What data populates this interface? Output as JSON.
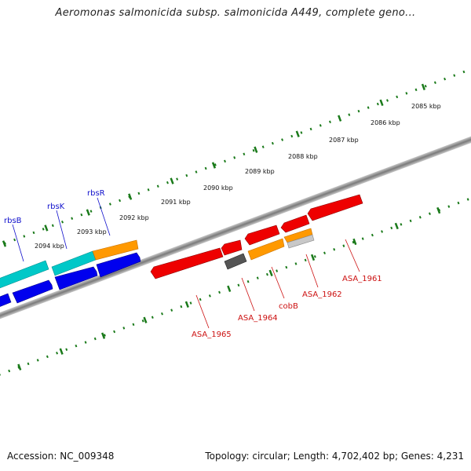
{
  "header": {
    "title": "Aeromonas salmonicida subsp. salmonicida A449, complete geno..."
  },
  "footer": {
    "accession": "Accession: NC_009348",
    "topology": "Topology: circular; Length: 4,702,402 bp; Genes: 4,231"
  },
  "ruler": {
    "ticks": [
      "2085 kbp",
      "2086 kbp",
      "2087 kbp",
      "2088 kbp",
      "2089 kbp",
      "2090 kbp",
      "2091 kbp",
      "2092 kbp",
      "2093 kbp",
      "2094 kbp"
    ]
  },
  "genes_forward": [
    {
      "name": "rbsB",
      "color": "#00c8c8"
    },
    {
      "name": "rbsK",
      "color": "#00c8c8"
    },
    {
      "name": "rbsR",
      "color": "#ff9900"
    }
  ],
  "genes_reverse": [
    {
      "name": "ASA_1961",
      "color": "#ee0000"
    },
    {
      "name": "ASA_1962",
      "color": "#ee0000"
    },
    {
      "name": "cobB",
      "color": "#ff9900"
    },
    {
      "name": "ASA_1964",
      "color": "#555555"
    },
    {
      "name": "ASA_1965",
      "color": "#ee0000"
    }
  ],
  "colors": {
    "backbone": "#808080",
    "ruler_ticks": "#1a7a1a",
    "cds_blue": "#0000ee",
    "cds_cyan": "#00c8c8",
    "cds_orange": "#ff9900",
    "cds_red": "#ee0000",
    "cds_gray": "#555555",
    "label_forward": "#1010cc",
    "label_reverse": "#cc1010"
  }
}
